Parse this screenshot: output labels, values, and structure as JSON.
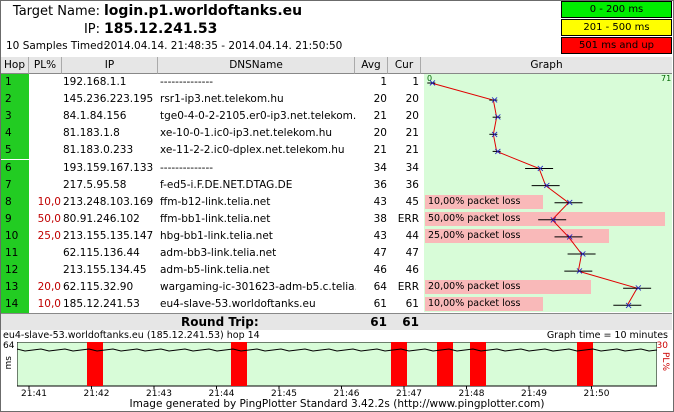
{
  "header": {
    "target_label": "Target Name:",
    "target_value": "login.p1.worldoftanks.eu",
    "ip_label": "IP:",
    "ip_value": "185.12.241.53",
    "samples_label": "10 Samples Timed:",
    "samples_value": "2014.04.14. 21:48:35 - 2014.04.14. 21:50:50"
  },
  "legend": [
    {
      "label": "0 - 200 ms",
      "color": "#00ee00"
    },
    {
      "label": "201 - 500 ms",
      "color": "#ffff00"
    },
    {
      "label": "501 ms and up",
      "color": "#ff0000"
    }
  ],
  "columns": {
    "hop": "Hop",
    "pl": "PL%",
    "ip": "IP",
    "dns": "DNSName",
    "avg": "Avg",
    "cur": "Cur",
    "graph": "Graph"
  },
  "graph_scale": {
    "min": "0",
    "max": "71"
  },
  "rows": [
    {
      "hop": "1",
      "pl": "",
      "ip": "192.168.1.1",
      "dns": "--------------",
      "avg": "1",
      "cur": "1",
      "loss": ""
    },
    {
      "hop": "2",
      "pl": "",
      "ip": "145.236.223.195",
      "dns": "rsr1-ip3.net.telekom.hu",
      "avg": "20",
      "cur": "20",
      "loss": ""
    },
    {
      "hop": "3",
      "pl": "",
      "ip": "84.1.84.156",
      "dns": "tge0-4-0-2-2105.er0-ip3.net.telekom.hu",
      "avg": "21",
      "cur": "20",
      "loss": ""
    },
    {
      "hop": "4",
      "pl": "",
      "ip": "81.183.1.8",
      "dns": "xe-10-0-1.ic0-ip3.net.telekom.hu",
      "avg": "20",
      "cur": "21",
      "loss": ""
    },
    {
      "hop": "5",
      "pl": "",
      "ip": "81.183.0.233",
      "dns": "xe-11-2-2.ic0-dplex.net.telekom.hu",
      "avg": "21",
      "cur": "21",
      "loss": ""
    },
    {
      "hop": "6",
      "pl": "",
      "ip": "193.159.167.133",
      "dns": "--------------",
      "avg": "34",
      "cur": "34",
      "loss": ""
    },
    {
      "hop": "7",
      "pl": "",
      "ip": "217.5.95.58",
      "dns": "f-ed5-i.F.DE.NET.DTAG.DE",
      "avg": "36",
      "cur": "36",
      "loss": ""
    },
    {
      "hop": "8",
      "pl": "10,0",
      "ip": "213.248.103.169",
      "dns": "ffm-b12-link.telia.net",
      "avg": "43",
      "cur": "45",
      "loss": "10,00% packet loss"
    },
    {
      "hop": "9",
      "pl": "50,0",
      "ip": "80.91.246.102",
      "dns": "ffm-bb1-link.telia.net",
      "avg": "38",
      "cur": "ERR",
      "loss": "50,00% packet loss"
    },
    {
      "hop": "10",
      "pl": "25,0",
      "ip": "213.155.135.147",
      "dns": "hbg-bb1-link.telia.net",
      "avg": "43",
      "cur": "44",
      "loss": "25,00% packet loss"
    },
    {
      "hop": "11",
      "pl": "",
      "ip": "62.115.136.44",
      "dns": "adm-bb3-link.telia.net",
      "avg": "47",
      "cur": "47",
      "loss": ""
    },
    {
      "hop": "12",
      "pl": "",
      "ip": "213.155.134.45",
      "dns": "adm-b5-link.telia.net",
      "avg": "46",
      "cur": "46",
      "loss": ""
    },
    {
      "hop": "13",
      "pl": "20,0",
      "ip": "62.115.32.90",
      "dns": "wargaming-ic-301623-adm-b5.c.telia.net",
      "avg": "64",
      "cur": "ERR",
      "loss": "20,00% packet loss"
    },
    {
      "hop": "14",
      "pl": "10,0",
      "ip": "185.12.241.53",
      "dns": "eu4-slave-53.worldoftanks.eu",
      "avg": "61",
      "cur": "61",
      "loss": "10,00% packet loss"
    }
  ],
  "roundtrip": {
    "label": "Round Trip:",
    "avg": "61",
    "cur": "61"
  },
  "bottom": {
    "title": "eu4-slave-53.worldoftanks.eu (185.12.241.53) hop 14",
    "time_label": "Graph time = 10 minutes",
    "y_top": "64",
    "y_unit": "ms",
    "pl_top": "30",
    "pl_unit": "PL%",
    "x_ticks": [
      "21:41",
      "21:42",
      "21:43",
      "21:44",
      "21:45",
      "21:46",
      "21:47",
      "21:48",
      "21:49",
      "21:50"
    ]
  },
  "footer": "Image generated by PingPlotter Standard 3.42.2s (http://www.pingplotter.com)"
}
